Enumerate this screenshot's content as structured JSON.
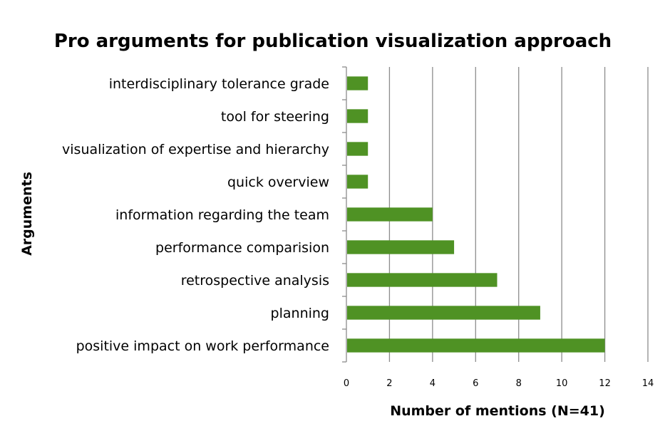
{
  "chart_data": {
    "type": "bar",
    "orientation": "horizontal",
    "title": "Pro arguments for publication visualization approach",
    "xlabel": "Number of mentions (N=41)",
    "ylabel": "Arguments",
    "categories": [
      "interdisciplinary tolerance grade",
      "tool for steering",
      "visualization of expertise and hierarchy",
      "quick overview",
      "information regarding the team",
      "performance comparision",
      "retrospective analysis",
      "planning",
      "positive impact on work performance"
    ],
    "values": [
      1,
      1,
      1,
      1,
      4,
      5,
      7,
      9,
      12
    ],
    "xlim": [
      0,
      14
    ],
    "xticks": [
      0,
      2,
      4,
      6,
      8,
      10,
      12,
      14
    ],
    "grid": true,
    "legend": "none",
    "bar_color": "#4f9224"
  }
}
